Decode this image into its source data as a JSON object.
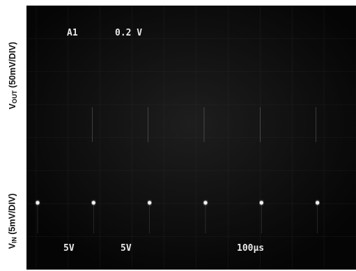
{
  "labels": {
    "vout_main": "V",
    "vout_sub": "OUT",
    "vout_rest": " (50mV/DIV)",
    "vin_main": "V",
    "vin_sub": "IN",
    "vin_rest": " (5mV/DIV)"
  },
  "screen_text": {
    "channel": "A1",
    "scale": "0.2 V",
    "vin_div1": "5V",
    "vin_div2": "5V",
    "time_div": "100µs"
  },
  "colors": {
    "trace": "#f2f2f2",
    "screen_bg": "#050505",
    "graticule": "#3a3a3a"
  },
  "chart_data": {
    "type": "line",
    "title": "",
    "xlabel": "",
    "ylabel_top": "VOUT (50mV/DIV)",
    "ylabel_bottom": "VIN (5mV/DIV)",
    "x_unit": "ms",
    "xlim": [
      0,
      1.0
    ],
    "grid": true,
    "series": [
      {
        "name": "VOUT",
        "unit": "mV",
        "segments": [
          {
            "x0": 0.0,
            "x1": 0.175,
            "y": 50
          },
          {
            "x0": 0.175,
            "x1": 0.35,
            "y": 0
          },
          {
            "x0": 0.35,
            "x1": 0.525,
            "y": 50
          },
          {
            "x0": 0.525,
            "x1": 0.7,
            "y": 0
          },
          {
            "x0": 0.7,
            "x1": 0.875,
            "y": 50
          },
          {
            "x0": 0.875,
            "x1": 1.0,
            "y": 0
          }
        ]
      },
      {
        "name": "VIN",
        "unit": "mV",
        "baseline": 0,
        "spike_times": [
          0.0,
          0.175,
          0.35,
          0.525,
          0.7,
          0.875
        ]
      }
    ]
  }
}
